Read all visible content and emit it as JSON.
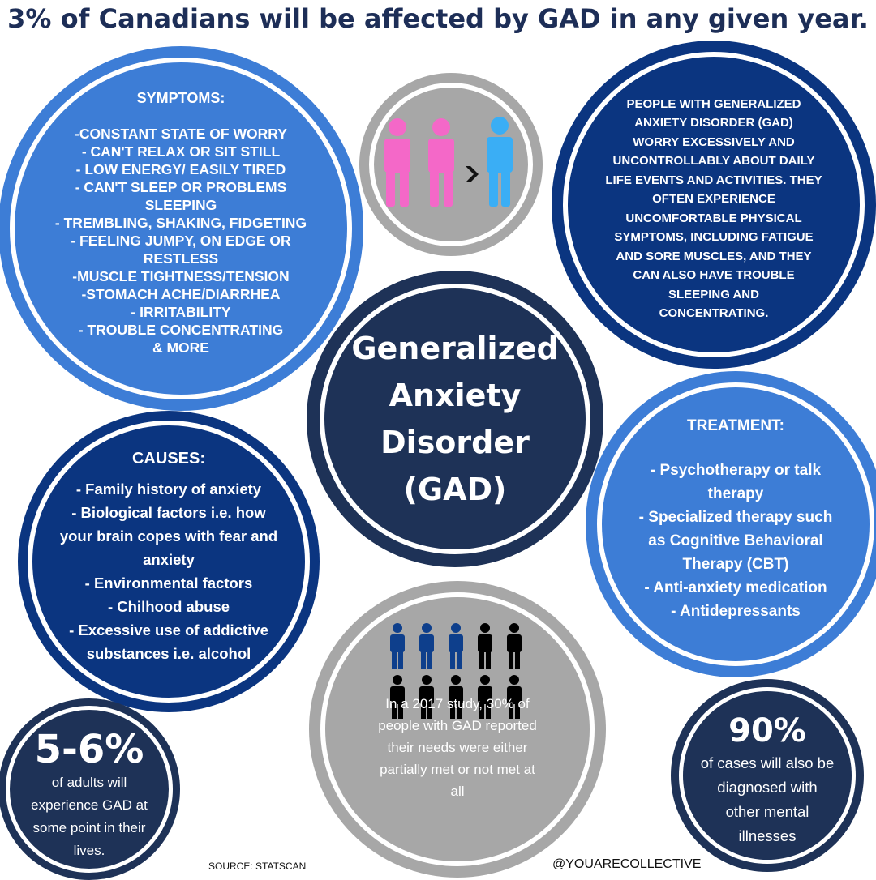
{
  "headline": "3% of Canadians will be affected by GAD in any given year.",
  "symptoms": {
    "heading": "SYMPTOMS:",
    "lines": [
      "-CONSTANT STATE OF WORRY",
      "- CAN'T RELAX OR SIT STILL",
      "- LOW ENERGY/ EASILY TIRED",
      "- CAN'T SLEEP OR PROBLEMS",
      "SLEEPING",
      "- TREMBLING, SHAKING, FIDGETING",
      "- FEELING JUMPY, ON EDGE OR",
      "RESTLESS",
      "-MUSCLE TIGHTNESS/TENSION",
      "-STOMACH ACHE/DIARRHEA",
      "- IRRITABILITY",
      "- TROUBLE CONCENTRATING",
      "& MORE"
    ]
  },
  "description": {
    "lines": [
      "PEOPLE WITH GENERALIZED",
      "ANXIETY DISORDER (GAD)",
      "WORRY EXCESSIVELY AND",
      "UNCONTROLLABLY ABOUT DAILY",
      "LIFE EVENTS AND ACTIVITIES. THEY",
      "OFTEN EXPERIENCE",
      "UNCOMFORTABLE PHYSICAL",
      "SYMPTOMS, INCLUDING FATIGUE",
      "AND SORE MUSCLES, AND THEY",
      "CAN ALSO HAVE TROUBLE",
      "SLEEPING AND",
      "CONCENTRATING."
    ]
  },
  "center_title": {
    "lines": [
      "Generalized",
      "Anxiety",
      "Disorder",
      "(GAD)"
    ]
  },
  "causes": {
    "heading": "CAUSES:",
    "lines": [
      "- Family history of anxiety",
      "- Biological factors i.e. how",
      "your brain copes with fear and",
      "anxiety",
      "- Environmental factors",
      "- Chilhood abuse",
      "- Excessive use of addictive",
      "substances i.e. alcohol"
    ]
  },
  "treatment": {
    "heading": "TREATMENT:",
    "lines": [
      "- Psychotherapy or talk",
      "therapy",
      "- Specialized therapy such",
      "as Cognitive Behavioral",
      "Therapy (CBT)",
      "- Anti-anxiety medication",
      "- Antidepressants"
    ]
  },
  "study": {
    "lines": [
      "In a 2017 study, 30% of",
      "people with GAD reported",
      "their needs were either",
      "partially met or not met at",
      "all"
    ],
    "icon_highlighted": 3,
    "icon_total": 10
  },
  "stat_adults": {
    "value": "5-6%",
    "lines": [
      "of adults will",
      "experience GAD at",
      "some point in their",
      "lives."
    ]
  },
  "stat_cases": {
    "value": "90%",
    "lines": [
      "of cases will also be",
      "diagnosed with",
      "other mental",
      "illnesses"
    ]
  },
  "footer": {
    "source": "SOURCE: STATSCAN",
    "handle": "@YOUARECOLLECTIVE"
  },
  "colors": {
    "navy": "#1e3257",
    "royal_blue": "#0b3580",
    "medium_blue": "#3d7dd6",
    "gray": "#a7a7a7",
    "pink": "#f468c8",
    "light_blue": "#3aaef5",
    "icon_blue": "#0e3f8c",
    "icon_black": "#000000"
  },
  "icons": {
    "gender_ratio": [
      "female-figure-icon",
      "female-figure-icon",
      "male-figure-icon"
    ],
    "arrow": "chevron-right-icon",
    "study_people": "person-icon"
  }
}
